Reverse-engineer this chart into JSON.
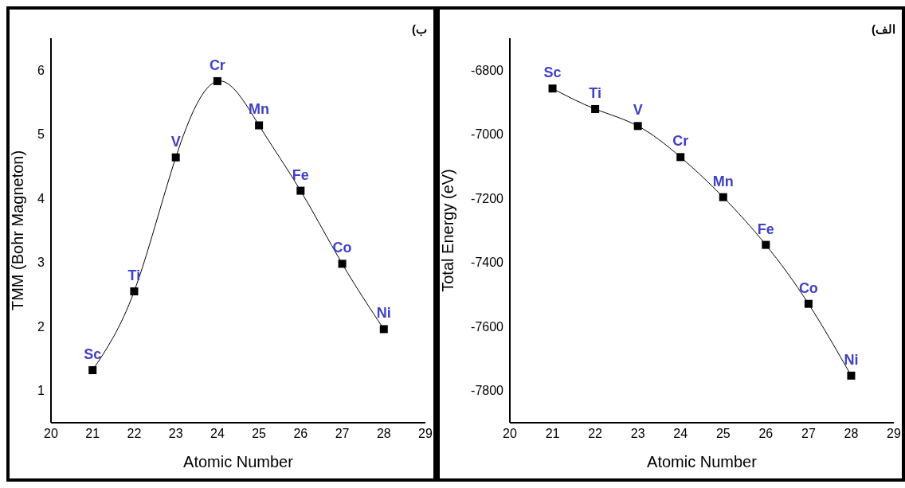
{
  "chart_data": [
    {
      "type": "line",
      "title": "ب)",
      "xlabel": "Atomic Number",
      "ylabel": "TMM (Bohr Magneton)",
      "x": [
        21,
        22,
        23,
        24,
        25,
        26,
        27,
        28
      ],
      "values": [
        1.32,
        2.55,
        4.64,
        5.83,
        5.14,
        4.12,
        2.98,
        1.96
      ],
      "color": "#000000",
      "marker": "square",
      "xlim": [
        20,
        29
      ],
      "xticks": [
        20,
        21,
        22,
        23,
        24,
        25,
        26,
        27,
        28,
        29
      ],
      "ylim": [
        0.5,
        6.5
      ],
      "yticks": [
        1,
        2,
        3,
        4,
        5,
        6
      ],
      "grid": false,
      "annotations": [
        {
          "text": "Sc",
          "x": 21,
          "y": 1.32
        },
        {
          "text": "Ti",
          "x": 22,
          "y": 2.55
        },
        {
          "text": "V",
          "x": 23,
          "y": 4.64
        },
        {
          "text": "Cr",
          "x": 24,
          "y": 5.83
        },
        {
          "text": "Mn",
          "x": 25,
          "y": 5.14
        },
        {
          "text": "Fe",
          "x": 26,
          "y": 4.12
        },
        {
          "text": "Co",
          "x": 27,
          "y": 2.98
        },
        {
          "text": "Ni",
          "x": 28,
          "y": 1.96
        }
      ]
    },
    {
      "type": "line",
      "title": "الف)",
      "xlabel": "Atomic Number",
      "ylabel": "Total Energy (eV)",
      "x": [
        21,
        22,
        23,
        24,
        25,
        26,
        27,
        28
      ],
      "values": [
        -6857,
        -6921,
        -6974,
        -7071,
        -7196,
        -7345,
        -7529,
        -7753
      ],
      "color": "#000000",
      "marker": "square",
      "xlim": [
        20,
        29
      ],
      "xticks": [
        20,
        21,
        22,
        23,
        24,
        25,
        26,
        27,
        28,
        29
      ],
      "ylim": [
        -7900,
        -6700
      ],
      "yticks": [
        -6800,
        -7000,
        -7200,
        -7400,
        -7600,
        -7800
      ],
      "grid": false,
      "annotations": [
        {
          "text": "Sc",
          "x": 21,
          "y": -6857
        },
        {
          "text": "Ti",
          "x": 22,
          "y": -6921
        },
        {
          "text": "V",
          "x": 23,
          "y": -6974
        },
        {
          "text": "Cr",
          "x": 24,
          "y": -7071
        },
        {
          "text": "Mn",
          "x": 25,
          "y": -7196
        },
        {
          "text": "Fe",
          "x": 26,
          "y": -7345
        },
        {
          "text": "Co",
          "x": 27,
          "y": -7529
        },
        {
          "text": "Ni",
          "x": 28,
          "y": -7753
        }
      ]
    }
  ]
}
